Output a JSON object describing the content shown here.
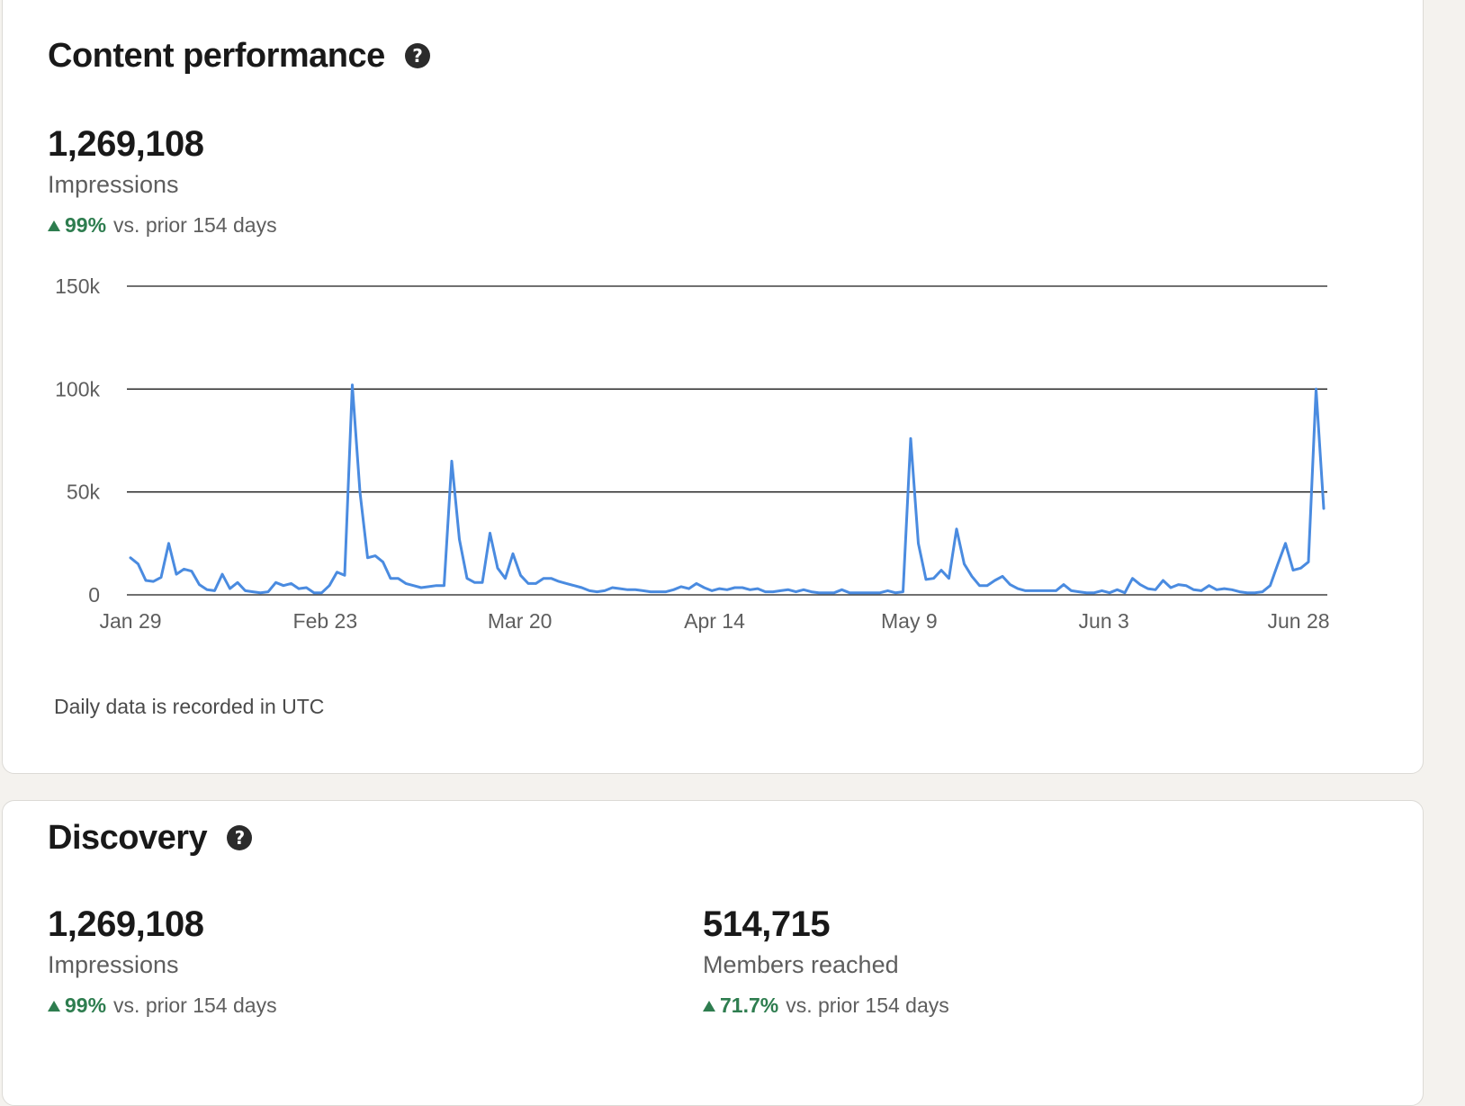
{
  "content_performance": {
    "title": "Content performance",
    "help_icon": "question-circle-icon",
    "value": "1,269,108",
    "label": "Impressions",
    "change_pct": "99%",
    "change_text": "vs. prior 154 days",
    "footnote": "Daily data is recorded in UTC"
  },
  "discovery": {
    "title": "Discovery",
    "help_icon": "question-circle-icon",
    "metrics": [
      {
        "value": "1,269,108",
        "label": "Impressions",
        "change_pct": "99%",
        "change_text": "vs. prior 154 days"
      },
      {
        "value": "514,715",
        "label": "Members reached",
        "change_pct": "71.7%",
        "change_text": "vs. prior 154 days"
      }
    ]
  },
  "colors": {
    "line": "#4a8be0",
    "positive": "#2e7d4f",
    "card_bg": "#ffffff",
    "page_bg": "#f4f2ee"
  },
  "chart_data": {
    "type": "line",
    "xlabel": "",
    "ylabel": "",
    "ylim": [
      0,
      150000
    ],
    "yticks": [
      0,
      50000,
      100000,
      150000
    ],
    "ytick_labels": [
      "0",
      "50k",
      "100k",
      "150k"
    ],
    "xticks": [
      "Jan 29",
      "Feb 23",
      "Mar 20",
      "Apr 14",
      "May 9",
      "Jun 3",
      "Jun 28"
    ],
    "grid": true,
    "legend": "none",
    "series": [
      {
        "values": [
          18000,
          15000,
          7000,
          6500,
          8500,
          25000,
          10000,
          12500,
          11500,
          5000,
          2500,
          2000,
          10000,
          3000,
          6000,
          2000,
          1500,
          1000,
          1500,
          6000,
          4500,
          5500,
          3000,
          3500,
          1000,
          1000,
          4500,
          11000,
          9500,
          102000,
          50000,
          18000,
          19000,
          16000,
          8000,
          8000,
          5500,
          4500,
          3500,
          4000,
          4500,
          4500,
          65000,
          27000,
          8000,
          6000,
          6000,
          30000,
          13000,
          8000,
          20000,
          9500,
          5500,
          5500,
          8000,
          8000,
          6500,
          5500,
          4500,
          3500,
          2000,
          1500,
          2000,
          3500,
          3000,
          2500,
          2500,
          2000,
          1500,
          1500,
          1500,
          2500,
          4000,
          3000,
          5500,
          3500,
          2000,
          3000,
          2500,
          3500,
          3500,
          2500,
          3000,
          1500,
          1500,
          2000,
          2500,
          1500,
          2500,
          1500,
          1000,
          1000,
          1000,
          2500,
          1000,
          1000,
          1000,
          1000,
          1000,
          2000,
          1000,
          1500,
          76000,
          25000,
          7500,
          8000,
          12000,
          8000,
          32000,
          15000,
          9000,
          4500,
          4500,
          7000,
          9000,
          5000,
          3000,
          2000,
          2000,
          2000,
          2000,
          2000,
          5000,
          2000,
          1500,
          1000,
          1000,
          2000,
          1000,
          2500,
          1000,
          8000,
          5000,
          3000,
          2500,
          7000,
          3500,
          5000,
          4500,
          2500,
          2000,
          4500,
          2500,
          3000,
          2500,
          1500,
          1000,
          1000,
          1500,
          4500,
          15000,
          25000,
          12000,
          13000,
          16000,
          100000,
          42000
        ]
      }
    ]
  }
}
